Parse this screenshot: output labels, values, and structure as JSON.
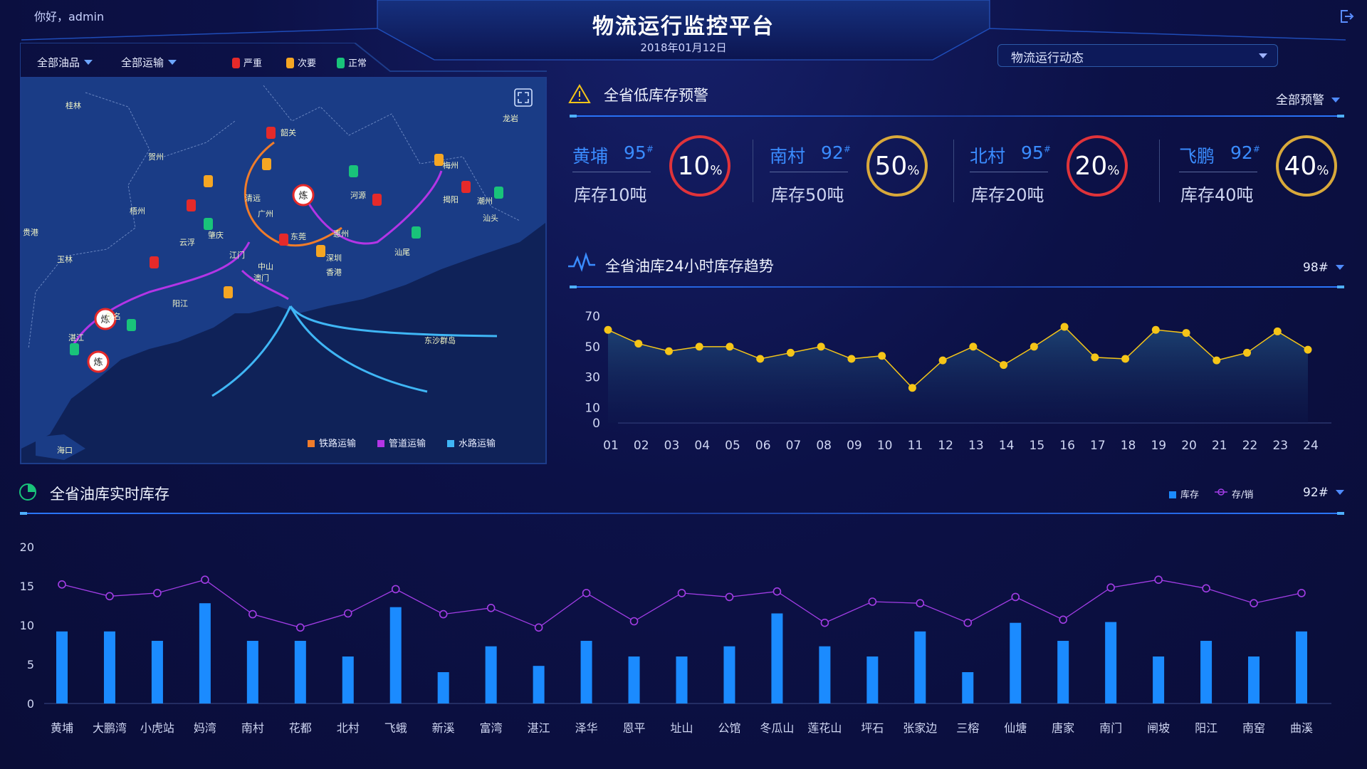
{
  "header": {
    "greeting": "你好，admin",
    "title": "物流运行监控平台",
    "date": "2018年01月12日",
    "dropdown": "物流运行动态"
  },
  "map": {
    "filters": [
      "全部油品",
      "全部运输"
    ],
    "status_legend": [
      {
        "label": "严重",
        "color": "#e52a2a"
      },
      {
        "label": "次要",
        "color": "#f5a623"
      },
      {
        "label": "正常",
        "color": "#19c37a"
      }
    ],
    "transport_legend": [
      {
        "label": "铁路运输",
        "color": "#f07c2a"
      },
      {
        "label": "管道运输",
        "color": "#b335e6"
      },
      {
        "label": "水路运输",
        "color": "#3fb6f5"
      }
    ],
    "refinery_label": "炼",
    "cities": [
      "桂林",
      "韶关",
      "龙岩",
      "贺州",
      "梅州",
      "清远",
      "河源",
      "梧州",
      "广州",
      "揭阳",
      "潮州",
      "汕头",
      "贵港",
      "云浮",
      "肇庆",
      "东莞",
      "惠州",
      "汕尾",
      "玉林",
      "江门",
      "深圳",
      "中山",
      "澳门",
      "香港",
      "阳江",
      "茂名",
      "湛江",
      "东沙群岛",
      "海口"
    ]
  },
  "alerts": {
    "title": "全省低库存预警",
    "filter": "全部预警",
    "items": [
      {
        "name": "黄埔",
        "grade": "95",
        "stock": "库存10吨",
        "pct": "10",
        "unit": "%",
        "color": "#e0333a"
      },
      {
        "name": "南村",
        "grade": "92",
        "stock": "库存50吨",
        "pct": "50",
        "unit": "%",
        "color": "#d9a93a"
      },
      {
        "name": "北村",
        "grade": "95",
        "stock": "库存20吨",
        "pct": "20",
        "unit": "%",
        "color": "#e0333a"
      },
      {
        "name": "飞鹏",
        "grade": "92",
        "stock": "库存40吨",
        "pct": "40",
        "unit": "%",
        "color": "#d9a93a"
      }
    ],
    "grade_mark": "#"
  },
  "trend": {
    "title": "全省油库24小时库存趋势",
    "filter": "98#"
  },
  "inventory": {
    "title": "全省油库实时库存",
    "filter": "92#",
    "legend_stock": "库存",
    "legend_ratio": "存/销"
  },
  "chart_data": [
    {
      "type": "line",
      "title": "全省油库24小时库存趋势",
      "x": [
        "01",
        "02",
        "03",
        "04",
        "05",
        "06",
        "07",
        "08",
        "09",
        "10",
        "11",
        "12",
        "13",
        "14",
        "15",
        "16",
        "17",
        "18",
        "19",
        "20",
        "21",
        "22",
        "23",
        "24"
      ],
      "values": [
        61,
        52,
        47,
        50,
        50,
        42,
        46,
        50,
        42,
        44,
        23,
        41,
        50,
        38,
        50,
        63,
        43,
        42,
        61,
        59,
        41,
        46,
        60,
        48
      ],
      "ylim": [
        0,
        70
      ],
      "yticks": [
        0,
        10,
        30,
        50,
        70
      ],
      "color": "#f5c518"
    },
    {
      "type": "bar",
      "title": "全省油库实时库存",
      "categories": [
        "黄埔",
        "大鹏湾",
        "小虎站",
        "妈湾",
        "南村",
        "花都",
        "北村",
        "飞蛾",
        "新溪",
        "富湾",
        "湛江",
        "泽华",
        "恩平",
        "址山",
        "公馆",
        "冬瓜山",
        "莲花山",
        "坪石",
        "张家边",
        "三榕",
        "仙塘",
        "唐家",
        "南门",
        "闸坡",
        "阳江",
        "南窑",
        "曲溪"
      ],
      "ylim": [
        0,
        20
      ],
      "yticks": [
        0,
        5,
        10,
        15,
        20
      ],
      "series": [
        {
          "name": "库存",
          "type": "bar",
          "color": "#1b8bff",
          "values": [
            9.2,
            9.2,
            8,
            12.8,
            8,
            8,
            6,
            12.3,
            4,
            7.3,
            4.8,
            8,
            6,
            6,
            7.3,
            11.5,
            7.3,
            6,
            9.2,
            4,
            10.3,
            8,
            10.4,
            6,
            8,
            6,
            9.2
          ]
        },
        {
          "name": "存/销",
          "type": "line",
          "color": "#a23de6",
          "values": [
            15.2,
            13.7,
            14.1,
            15.8,
            11.4,
            9.7,
            11.5,
            14.6,
            11.4,
            12.2,
            9.7,
            14.1,
            10.5,
            14.1,
            13.6,
            14.3,
            10.3,
            13,
            12.8,
            10.3,
            13.6,
            10.7,
            14.8,
            15.8,
            14.7,
            12.8,
            14.1
          ]
        }
      ]
    }
  ]
}
